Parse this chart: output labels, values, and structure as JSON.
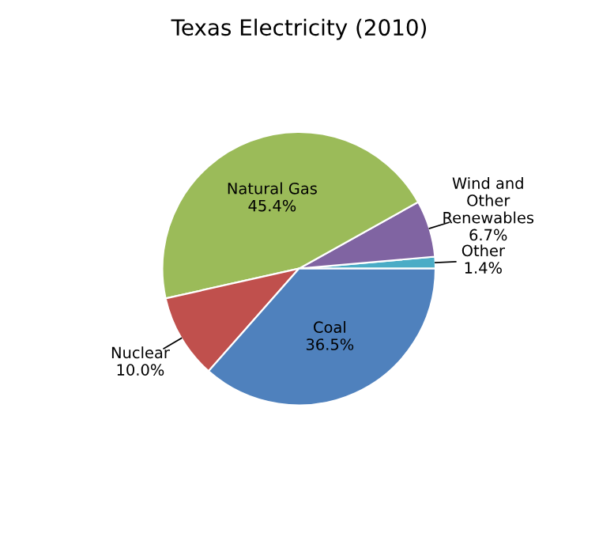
{
  "chart_data": {
    "type": "pie",
    "title": "Texas Electricity (2010)",
    "categories": [
      "Other",
      "Wind and\nOther\nRenewables",
      "Natural Gas",
      "Nuclear",
      "Coal"
    ],
    "values": [
      1.4,
      6.7,
      45.4,
      10.0,
      36.5
    ],
    "value_labels": [
      "1.4%",
      "6.7%",
      "45.4%",
      "10.0%",
      "36.5%"
    ],
    "colors": [
      "#4bacc6",
      "#8064a2",
      "#9bbb59",
      "#c0504d",
      "#4f81bd"
    ],
    "legend": false
  }
}
